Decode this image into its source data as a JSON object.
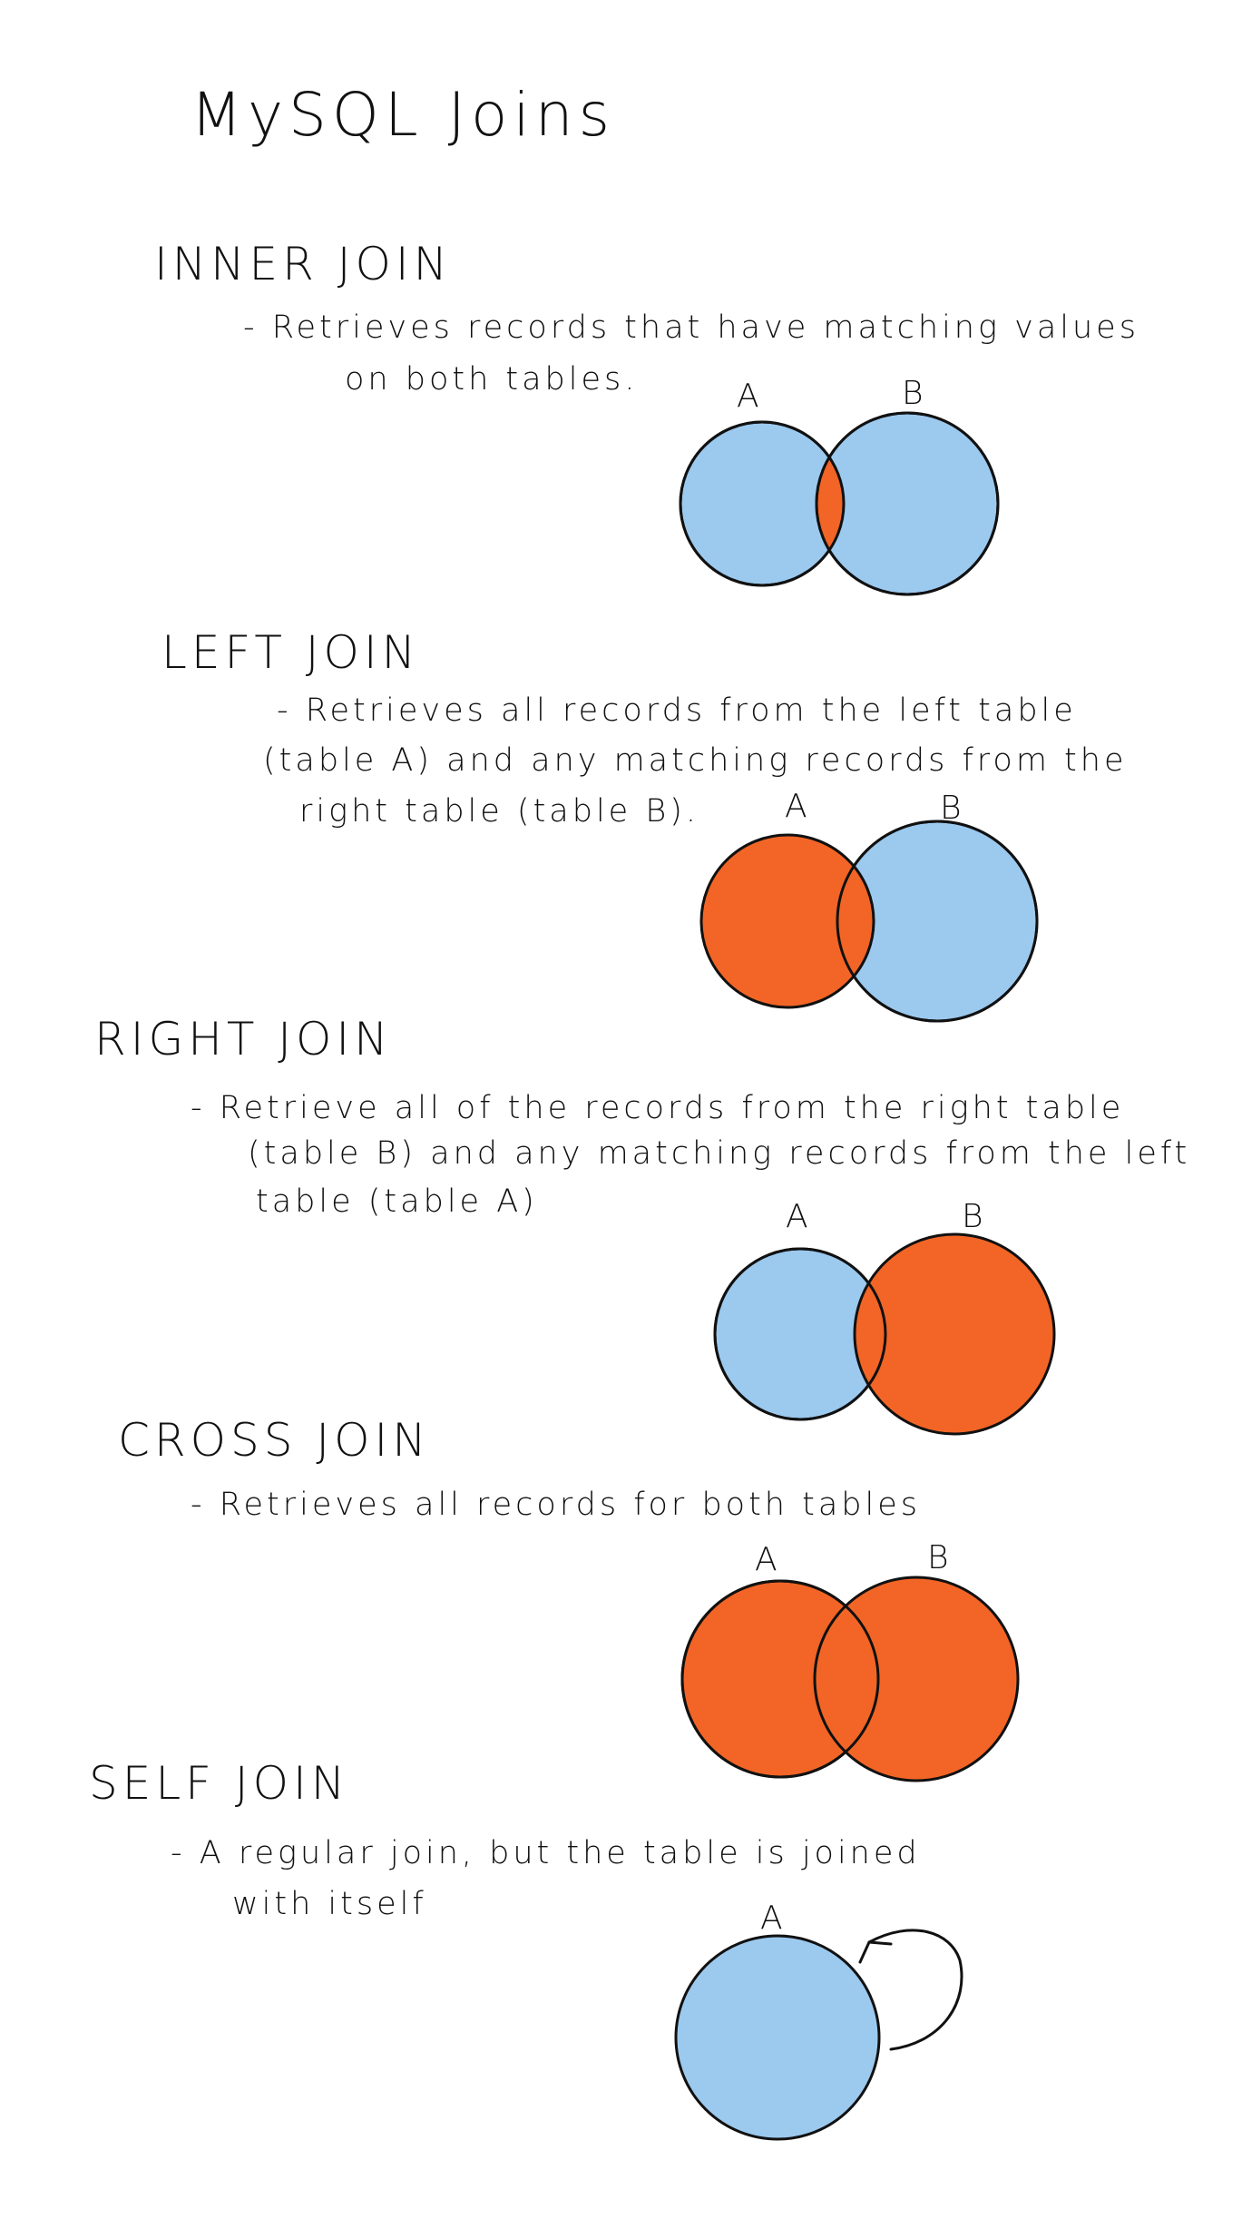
{
  "page_title": "MySQL Joins",
  "colors": {
    "table_fill": "#9cc9ee",
    "selected_fill": "#f26526",
    "outline": "#111111"
  },
  "sections": [
    {
      "heading": "INNER JOIN",
      "description": [
        "- Retrieves records that have matching values",
        "on both tables."
      ],
      "circle_labels": [
        "A",
        "B"
      ]
    },
    {
      "heading": "LEFT JOIN",
      "description": [
        "- Retrieves all records from the left table",
        "(table A) and any matching records from the",
        "right table (table B)."
      ],
      "circle_labels": [
        "A",
        "B"
      ]
    },
    {
      "heading": "RIGHT JOIN",
      "description": [
        "- Retrieve all of the records from the right table",
        "(table B) and any matching records from the left",
        "table (table A)"
      ],
      "circle_labels": [
        "A",
        "B"
      ]
    },
    {
      "heading": "CROSS JOIN",
      "description": [
        "- Retrieves all records for both tables"
      ],
      "circle_labels": [
        "A",
        "B"
      ]
    },
    {
      "heading": "SELF JOIN",
      "description": [
        "- A regular join, but the table is joined",
        "with itself"
      ],
      "circle_labels": [
        "A"
      ]
    }
  ]
}
